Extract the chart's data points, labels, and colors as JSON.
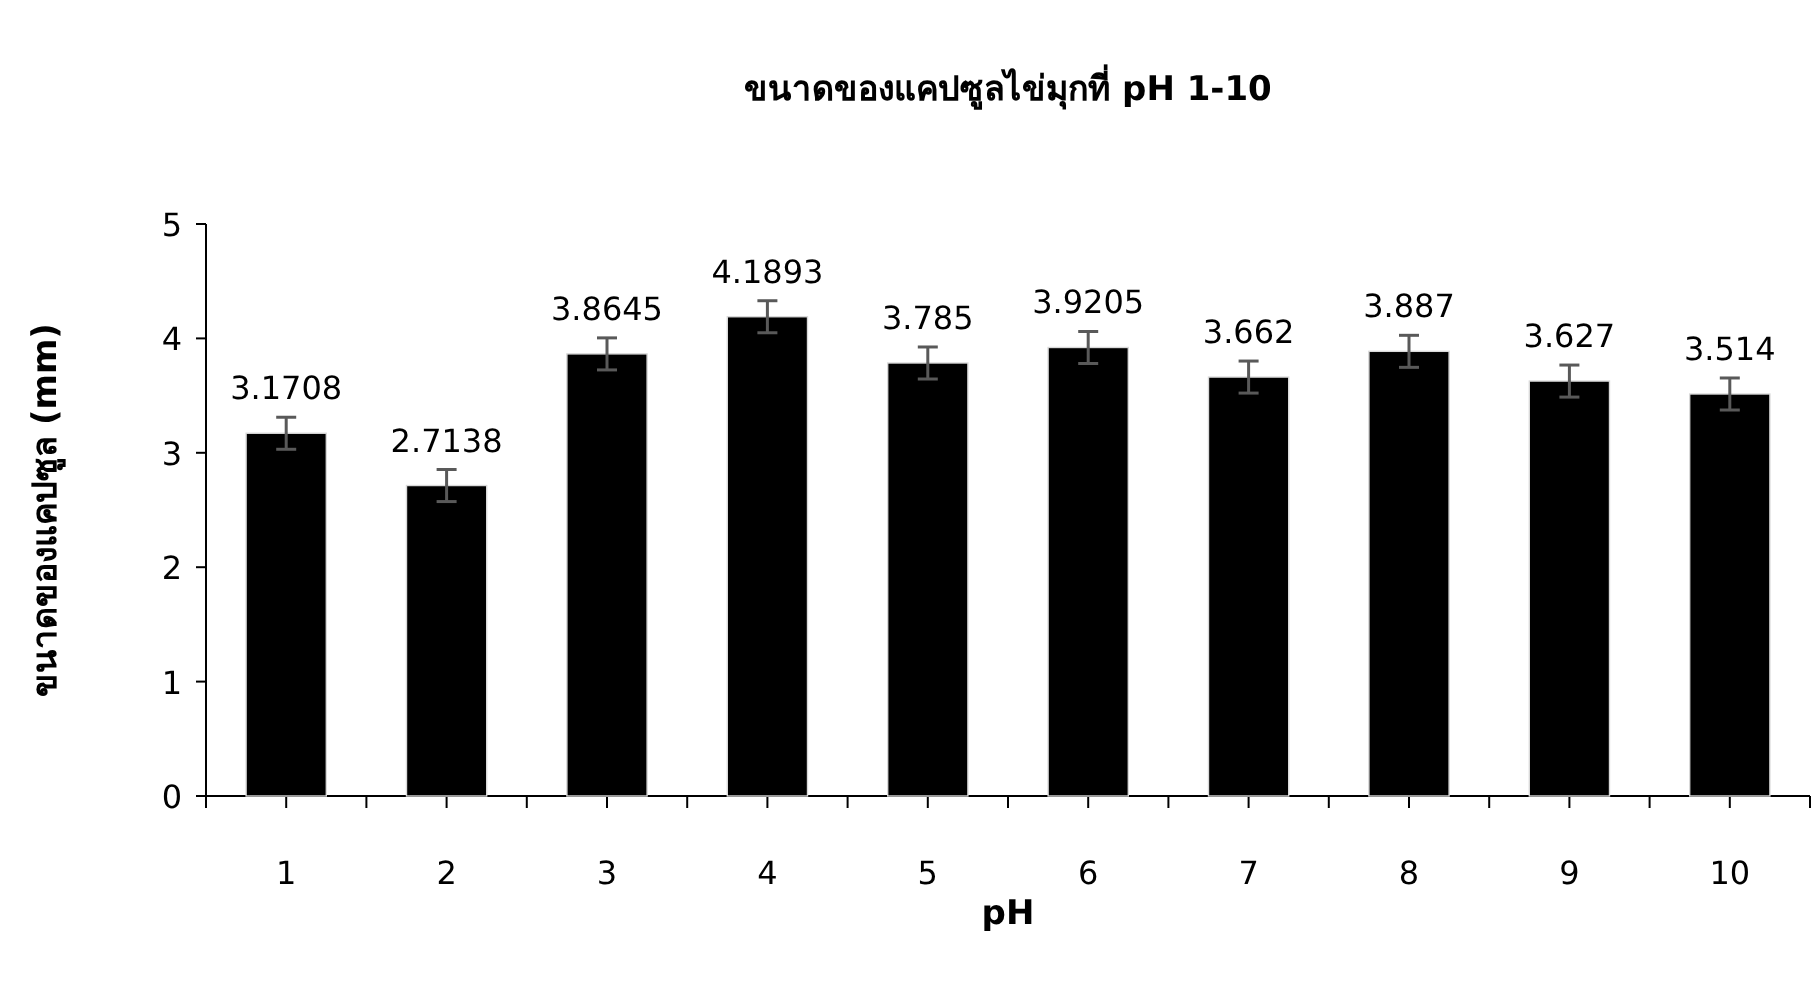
{
  "chart_data": {
    "type": "bar",
    "title": "ขนาดของแคปซูลไข่มุกที่ pH 1-10",
    "xlabel": "pH",
    "ylabel": "ขนาดของแคปซูล (mm)",
    "categories": [
      "1",
      "2",
      "3",
      "4",
      "5",
      "6",
      "7",
      "8",
      "9",
      "10"
    ],
    "values": [
      3.1708,
      2.7138,
      3.8645,
      4.1893,
      3.785,
      3.9205,
      3.662,
      3.887,
      3.627,
      3.514
    ],
    "errors": [
      0.14,
      0.14,
      0.14,
      0.14,
      0.14,
      0.14,
      0.14,
      0.14,
      0.14,
      0.14
    ],
    "color": "#000000",
    "ylim": [
      0,
      5
    ],
    "yticks": [
      0,
      1,
      2,
      3,
      4,
      5
    ],
    "data_labels": true
  }
}
